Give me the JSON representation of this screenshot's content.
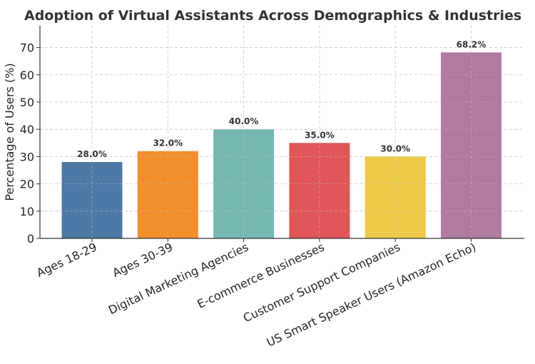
{
  "chart_data": {
    "type": "bar",
    "title": "Adoption of Virtual Assistants Across Demographics & Industries",
    "xlabel": "",
    "ylabel": "Percentage of Users (%)",
    "ylim": [
      0,
      78
    ],
    "yticks": [
      0,
      10,
      20,
      30,
      40,
      50,
      60,
      70
    ],
    "grid": true,
    "categories": [
      "Ages 18-29",
      "Ages 30-39",
      "Digital Marketing Agencies",
      "E-commerce Businesses",
      "Customer Support Companies",
      "US Smart Speaker Users (Amazon Echo)"
    ],
    "values": [
      28.0,
      32.0,
      40.0,
      35.0,
      30.0,
      68.2
    ],
    "data_labels": [
      "28.0%",
      "32.0%",
      "40.0%",
      "35.0%",
      "30.0%",
      "68.2%"
    ],
    "colors": [
      "#4e79a7",
      "#f28e2b",
      "#76b7b2",
      "#e15759",
      "#edc948",
      "#b07aa1"
    ]
  }
}
